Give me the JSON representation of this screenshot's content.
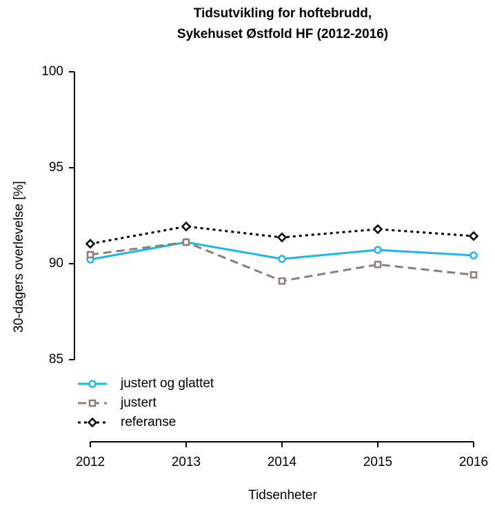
{
  "chart_data": {
    "type": "line",
    "title": [
      "Tidsutvikling for hoftebrudd,",
      "Sykehuset Østfold HF (2012-2016)"
    ],
    "x_label": "Tidsenheter",
    "y_label": "30-dagers overlevelse [%]",
    "x": [
      2012,
      2013,
      2014,
      2015,
      2016
    ],
    "xlim": [
      2012,
      2016
    ],
    "xticks": [
      2012,
      2013,
      2014,
      2015,
      2016
    ],
    "ylim": [
      80.72,
      100
    ],
    "yticks": [
      85,
      90,
      95,
      100
    ],
    "legend": "bottom-left",
    "series": [
      {
        "name": "justert og glattet",
        "color": "#1ab8e8",
        "marker": "circle",
        "linestyle": "solid",
        "values": [
          90.22,
          91.12,
          90.25,
          90.72,
          90.43
        ]
      },
      {
        "name": "justert",
        "color": "#8c7e74",
        "marker": "square",
        "linestyle": "dashed",
        "values": [
          90.47,
          91.12,
          89.1,
          89.96,
          89.42
        ]
      },
      {
        "name": "referanse",
        "color": "#000000",
        "marker": "diamond",
        "linestyle": "dotted",
        "values": [
          91.04,
          91.94,
          91.37,
          91.8,
          91.44
        ]
      }
    ]
  }
}
